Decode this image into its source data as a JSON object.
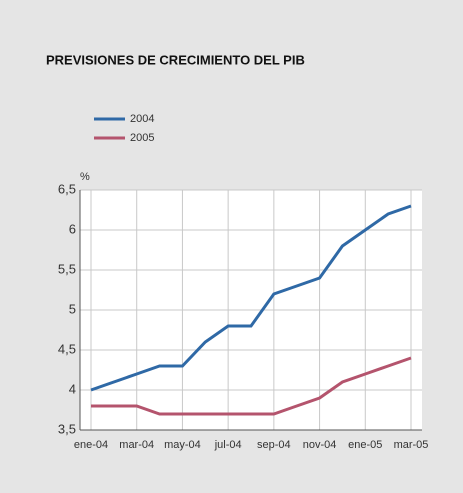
{
  "chart_data": {
    "type": "line",
    "title": "PREVISIONES DE CRECIMIENTO DEL PIB",
    "y_label": "%",
    "categories": [
      "ene-04",
      null,
      "mar-04",
      null,
      "may-04",
      null,
      "jul-04",
      null,
      "sep-04",
      null,
      "nov-04",
      null,
      "ene-05",
      null,
      "mar-05"
    ],
    "series": [
      {
        "name": "2004",
        "color": "#2f69a6",
        "values": [
          4.0,
          4.1,
          4.2,
          4.3,
          4.3,
          4.6,
          4.8,
          4.8,
          5.2,
          5.3,
          5.4,
          5.8,
          6.0,
          6.2,
          6.3
        ]
      },
      {
        "name": "2005",
        "color": "#b4546d",
        "values": [
          3.8,
          3.8,
          3.8,
          3.7,
          3.7,
          3.7,
          3.7,
          3.7,
          3.7,
          3.8,
          3.9,
          4.1,
          4.2,
          4.3,
          4.4
        ]
      }
    ],
    "ylim": [
      3.5,
      6.5
    ],
    "yticks": [
      {
        "value": 3.5,
        "label": "3,5"
      },
      4,
      {
        "value": 4.5,
        "label": "4,5"
      },
      5,
      {
        "value": 5.5,
        "label": "5,5"
      },
      6,
      {
        "value": 6.5,
        "label": "6,5"
      }
    ],
    "grid": true
  }
}
